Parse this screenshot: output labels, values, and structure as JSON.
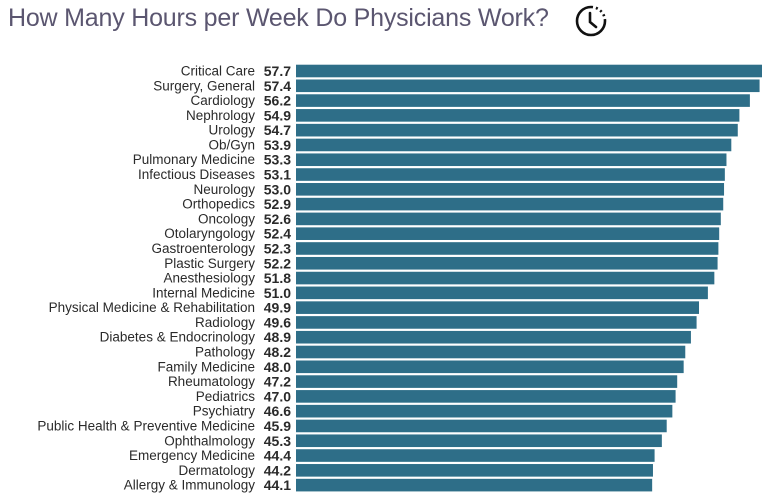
{
  "chart_data": {
    "type": "bar",
    "orientation": "horizontal",
    "title": "How Many Hours per Week Do Physicians Work?",
    "title_icon": "clock-icon",
    "xlim": [
      0,
      57.7
    ],
    "grid": false,
    "bar_color": "#2e6e88",
    "categories": [
      "Critical Care",
      "Surgery, General",
      "Cardiology",
      "Nephrology",
      "Urology",
      "Ob/Gyn",
      "Pulmonary Medicine",
      "Infectious Diseases",
      "Neurology",
      "Orthopedics",
      "Oncology",
      "Otolaryngology",
      "Gastroenterology",
      "Plastic Surgery",
      "Anesthesiology",
      "Internal Medicine",
      "Physical Medicine & Rehabilitation",
      "Radiology",
      "Diabetes & Endocrinology",
      "Pathology",
      "Family Medicine",
      "Rheumatology",
      "Pediatrics",
      "Psychiatry",
      "Public Health & Preventive Medicine",
      "Ophthalmology",
      "Emergency Medicine",
      "Dermatology",
      "Allergy & Immunology"
    ],
    "values": [
      57.7,
      57.4,
      56.2,
      54.9,
      54.7,
      53.9,
      53.3,
      53.1,
      53.0,
      52.9,
      52.6,
      52.4,
      52.3,
      52.2,
      51.8,
      51.0,
      49.9,
      49.6,
      48.9,
      48.2,
      48.0,
      47.2,
      47.0,
      46.6,
      45.9,
      45.3,
      44.4,
      44.2,
      44.1
    ]
  }
}
